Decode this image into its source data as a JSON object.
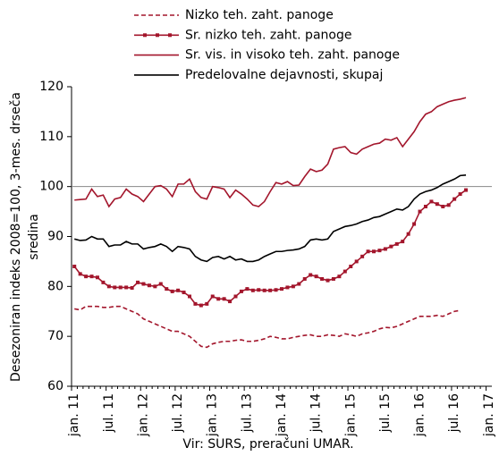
{
  "chart_data": {
    "type": "line",
    "ylabel": [
      "Desezoniran indeks 2008=100, 3-mes. drseča",
      "sredina"
    ],
    "source": "Vir: SURS, preračuni UMAR.",
    "categories": [
      "jan. 11",
      null,
      null,
      null,
      null,
      null,
      "jul. 11",
      null,
      null,
      null,
      null,
      null,
      "jan. 12",
      null,
      null,
      null,
      null,
      null,
      "jul. 12",
      null,
      null,
      null,
      null,
      null,
      "jan. 13",
      null,
      null,
      null,
      null,
      null,
      "jul. 13",
      null,
      null,
      null,
      null,
      null,
      "jan. 14",
      null,
      null,
      null,
      null,
      null,
      "jul. 14",
      null,
      null,
      null,
      null,
      null,
      "jan. 15",
      null,
      null,
      null,
      null,
      null,
      "jul. 15",
      null,
      null,
      null,
      null,
      null,
      "jan. 16",
      null,
      null,
      null,
      null,
      null,
      "jul. 16",
      null,
      null,
      null,
      null,
      null,
      "jan. 17"
    ],
    "series": [
      {
        "name": "Nizko teh. zaht. panoge",
        "color": "#a3162c",
        "dash": true,
        "marker": false,
        "values": [
          75.5,
          75.3,
          76,
          76,
          76,
          75.8,
          75.8,
          76,
          76,
          75.5,
          75,
          74.5,
          73.5,
          73,
          72.5,
          72,
          71.5,
          71,
          71,
          70.5,
          70,
          69,
          68,
          67.8,
          68.5,
          68.8,
          69,
          69,
          69.2,
          69.3,
          69,
          69,
          69.2,
          69.5,
          70,
          69.8,
          69.5,
          69.5,
          69.8,
          70,
          70.2,
          70.3,
          70,
          70,
          70.3,
          70.2,
          70,
          70.5,
          70.3,
          70,
          70.5,
          70.7,
          71,
          71.5,
          71.8,
          71.7,
          72,
          72.5,
          73,
          73.5,
          74,
          74,
          74,
          74.2,
          74,
          74.5,
          75,
          75.2,
          null,
          null,
          null,
          null,
          null
        ]
      },
      {
        "name": "Sr. nizko teh. zaht. panoge",
        "color": "#a3162c",
        "dash": false,
        "marker": true,
        "values": [
          84,
          82.5,
          82,
          82,
          81.8,
          80.8,
          80,
          79.8,
          79.8,
          79.8,
          79.7,
          80.8,
          80.5,
          80.2,
          80,
          80.5,
          79.5,
          79,
          79.2,
          78.8,
          78,
          76.5,
          76.2,
          76.5,
          78,
          77.5,
          77.5,
          77,
          78,
          79,
          79.5,
          79.2,
          79.3,
          79.2,
          79.2,
          79.3,
          79.5,
          79.8,
          80,
          80.5,
          81.5,
          82.3,
          82,
          81.5,
          81.2,
          81.5,
          82,
          83,
          84,
          85,
          86,
          87,
          87,
          87.2,
          87.5,
          88,
          88.5,
          89,
          90.5,
          92.5,
          95,
          96,
          97,
          96.5,
          96,
          96.3,
          97.5,
          98.5,
          99.3,
          null,
          null,
          null,
          null
        ]
      },
      {
        "name": "Sr. vis. in visoko teh. zaht. panoge",
        "color": "#a3162c",
        "dash": false,
        "marker": false,
        "values": [
          97.3,
          97.4,
          97.5,
          99.5,
          98,
          98.3,
          96,
          97.5,
          97.8,
          99.5,
          98.5,
          98,
          97,
          98.5,
          100,
          100.2,
          99.5,
          98,
          100.5,
          100.5,
          101.5,
          99,
          97.8,
          97.5,
          100,
          99.8,
          99.5,
          97.8,
          99.3,
          98.5,
          97.5,
          96.3,
          96,
          97,
          99,
          100.8,
          100.5,
          101,
          100.2,
          100.3,
          102,
          103.5,
          103,
          103.3,
          104.5,
          107.5,
          107.8,
          108,
          106.8,
          106.5,
          107.5,
          108,
          108.5,
          108.7,
          109.5,
          109.3,
          109.8,
          108,
          109.5,
          111,
          113,
          114.5,
          115,
          116,
          116.5,
          117,
          117.3,
          117.5,
          117.8,
          null,
          null,
          null,
          null
        ]
      },
      {
        "name": "Predelovalne dejavnosti, skupaj",
        "color": "#000000",
        "dash": false,
        "marker": false,
        "values": [
          89.5,
          89.2,
          89.3,
          90,
          89.5,
          89.5,
          88,
          88.3,
          88.3,
          89,
          88.5,
          88.5,
          87.5,
          87.8,
          88,
          88.5,
          88,
          87,
          88,
          87.8,
          87.5,
          86,
          85.3,
          85,
          85.8,
          86,
          85.5,
          86,
          85.3,
          85.5,
          85,
          85,
          85.3,
          86,
          86.5,
          87,
          87,
          87.2,
          87.3,
          87.5,
          88,
          89.3,
          89.5,
          89.3,
          89.5,
          91,
          91.5,
          92,
          92.2,
          92.5,
          93,
          93.3,
          93.8,
          94,
          94.5,
          95,
          95.5,
          95.3,
          96,
          97.5,
          98.5,
          99,
          99.3,
          99.8,
          100.5,
          101,
          101.5,
          102.2,
          102.3,
          null,
          null,
          null,
          null
        ]
      }
    ],
    "ylim": [
      60,
      120
    ],
    "yticks": [
      60,
      70,
      80,
      90,
      100,
      110,
      120
    ],
    "hline": 100
  }
}
